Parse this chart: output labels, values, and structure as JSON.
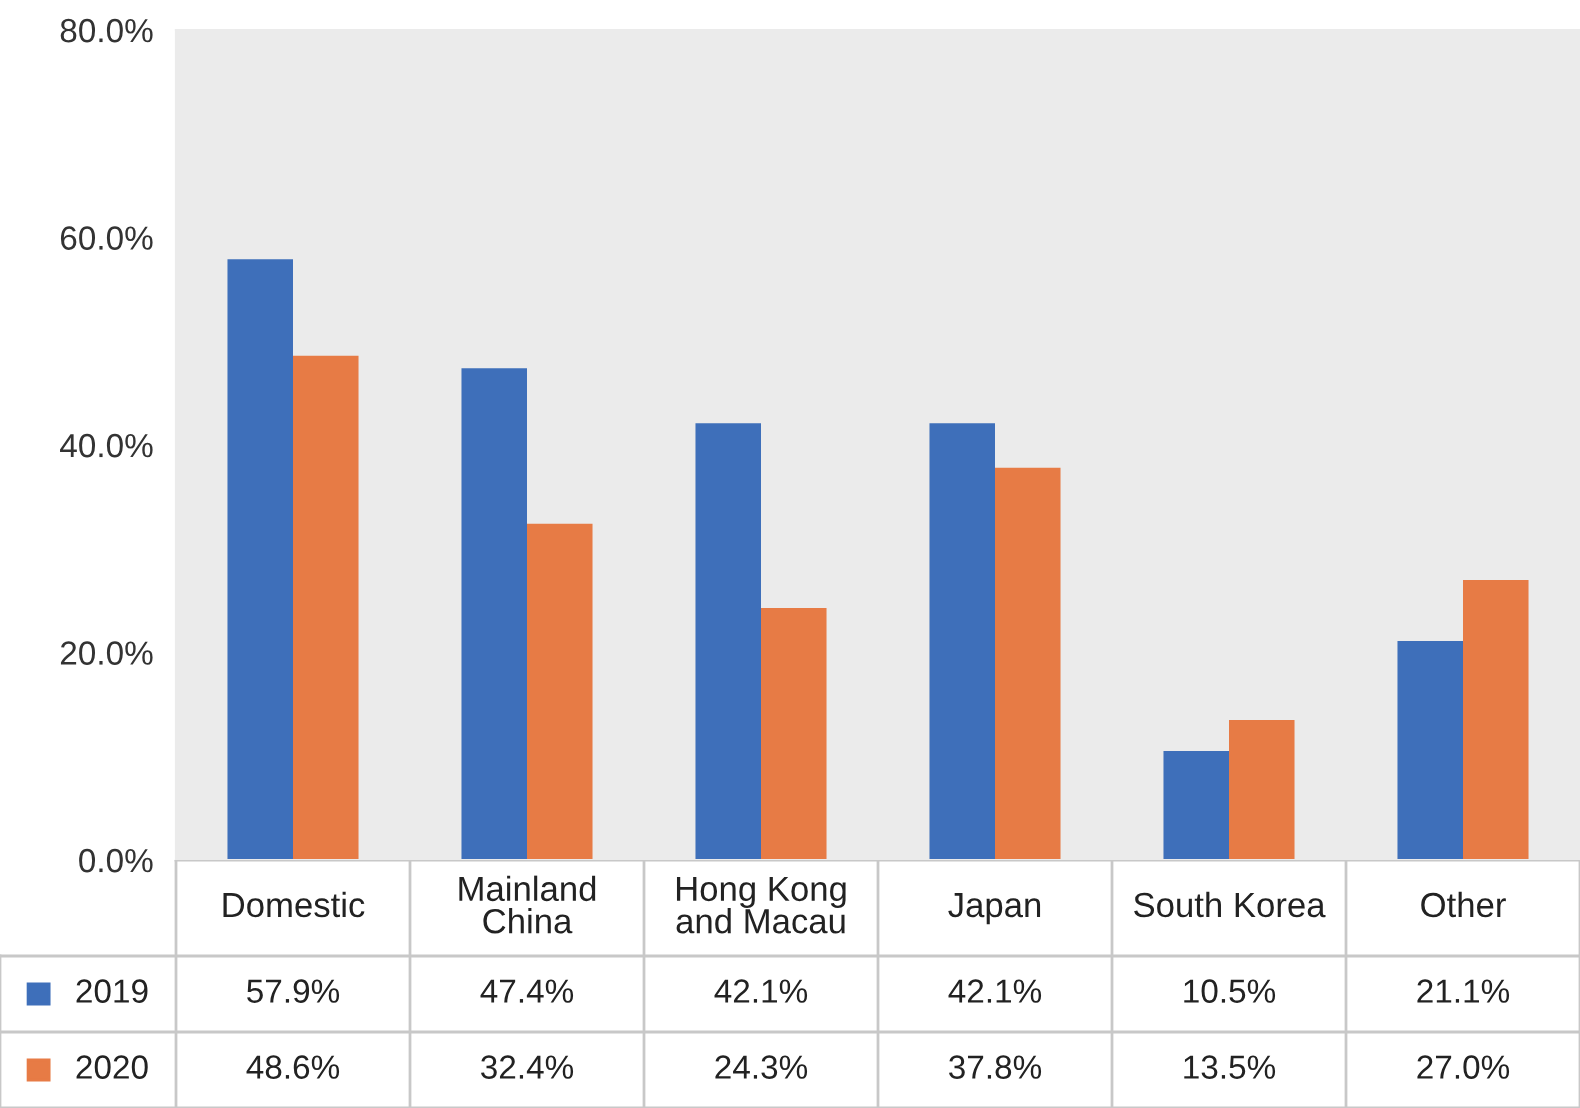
{
  "chart_data": {
    "type": "bar",
    "categories": [
      "Domestic",
      "Mainland\nChina",
      "Hong Kong\nand Macau",
      "Japan",
      "South Korea",
      "Other"
    ],
    "series": [
      {
        "name": "2019",
        "color": "#3e6fba",
        "values": [
          57.9,
          47.4,
          42.1,
          42.1,
          10.5,
          21.1
        ],
        "value_labels": [
          "57.9%",
          "47.4%",
          "42.1%",
          "42.1%",
          "10.5%",
          "21.1%"
        ]
      },
      {
        "name": "2020",
        "color": "#e77b45",
        "values": [
          48.6,
          32.4,
          24.3,
          37.8,
          13.5,
          27.0
        ],
        "value_labels": [
          "48.6%",
          "32.4%",
          "24.3%",
          "37.8%",
          "13.5%",
          "27.0%"
        ]
      }
    ],
    "ylim": [
      0,
      80
    ],
    "yticks": [
      {
        "value": 0,
        "label": "0.0%"
      },
      {
        "value": 20,
        "label": "20.0%"
      },
      {
        "value": 40,
        "label": "40.0%"
      },
      {
        "value": 60,
        "label": "60.0%"
      },
      {
        "value": 80,
        "label": "80.0%"
      }
    ],
    "grid": false,
    "legend": "bottom left"
  }
}
